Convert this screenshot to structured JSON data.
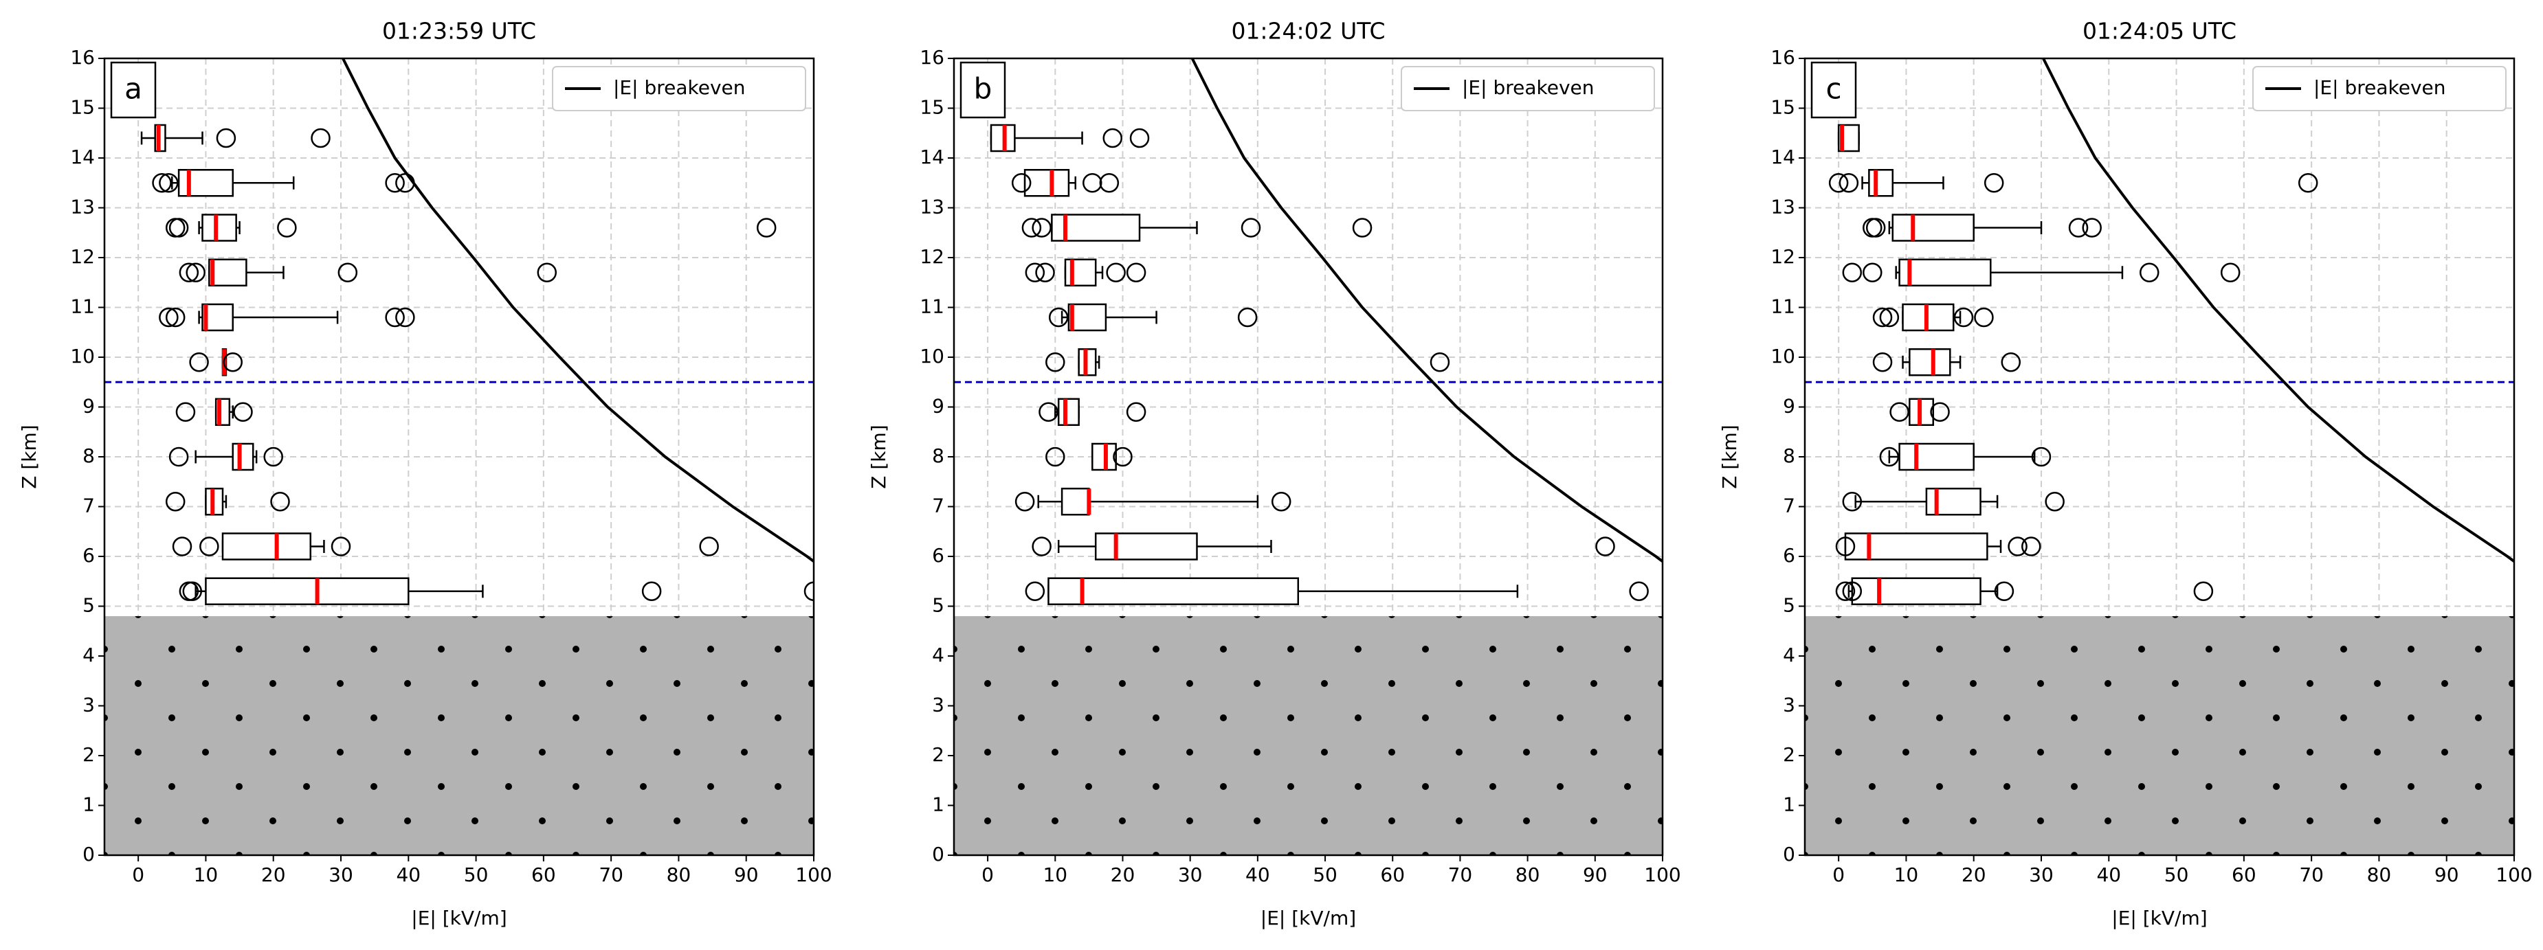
{
  "chart_data": [
    {
      "type": "box",
      "title": "01:23:59 UTC",
      "panel_label": "a",
      "xlabel": "|E| [kV/m]",
      "ylabel": "Z [km]",
      "xlim": [
        -5,
        100
      ],
      "ylim": [
        0,
        16
      ],
      "xticks": [
        0,
        10,
        20,
        30,
        40,
        50,
        60,
        70,
        80,
        90,
        100
      ],
      "yticks": [
        0,
        1,
        2,
        3,
        4,
        5,
        6,
        7,
        8,
        9,
        10,
        11,
        12,
        13,
        14,
        15,
        16
      ],
      "grid": true,
      "legend": "upper right",
      "box_color": "#000000",
      "median_color": "#ff0000",
      "reference_line": 9.5,
      "reference_color": "#0000cc",
      "ground_top": 4.8,
      "ground_color": "#b3b3b3",
      "boxes": {
        "positions": [
          5.3,
          6.2,
          7.1,
          8.0,
          8.9,
          9.9,
          10.8,
          11.7,
          12.6,
          13.5,
          14.4
        ],
        "whislo": [
          8.5,
          12.5,
          10,
          8.5,
          11.5,
          12.5,
          9,
          10.5,
          9,
          5,
          0.5
        ],
        "q1": [
          10,
          12.5,
          10,
          14,
          11.5,
          12.5,
          9.5,
          10.5,
          9.5,
          6,
          2.5
        ],
        "med": [
          26.5,
          20.5,
          11,
          15,
          12,
          12.7,
          10,
          11,
          11.5,
          7.5,
          3
        ],
        "q3": [
          40,
          25.5,
          12.5,
          17,
          13.5,
          13,
          14,
          16,
          14.5,
          14,
          4
        ],
        "whishi": [
          51,
          27.5,
          13,
          17.5,
          14,
          13,
          29.5,
          21.5,
          15,
          23,
          9.5
        ],
        "fliers": [
          [
            7.5,
            8,
            76,
            100
          ],
          [
            6.5,
            10.5,
            30,
            84.5
          ],
          [
            5.5,
            21
          ],
          [
            6,
            20
          ],
          [
            7,
            15.5
          ],
          [
            9,
            14
          ],
          [
            4.5,
            5.5,
            38,
            39.5
          ],
          [
            7.5,
            8.5,
            31,
            60.5
          ],
          [
            5.5,
            6,
            22,
            93
          ],
          [
            3.5,
            4.5,
            38,
            39.5
          ],
          [
            13,
            27
          ]
        ]
      },
      "series": [
        {
          "name": "|E| breakeven",
          "color": "#000000",
          "x": [
            30.3,
            34,
            38,
            43.5,
            49.6,
            55.5,
            62.4,
            69.5,
            78,
            88,
            99,
            100
          ],
          "y": [
            16,
            15,
            14,
            13,
            12,
            11,
            10,
            9,
            8,
            7,
            6,
            5.9
          ]
        }
      ]
    },
    {
      "type": "box",
      "title": "01:24:02 UTC",
      "panel_label": "b",
      "xlabel": "|E| [kV/m]",
      "ylabel": "Z [km]",
      "xlim": [
        -5,
        100
      ],
      "ylim": [
        0,
        16
      ],
      "xticks": [
        0,
        10,
        20,
        30,
        40,
        50,
        60,
        70,
        80,
        90,
        100
      ],
      "yticks": [
        0,
        1,
        2,
        3,
        4,
        5,
        6,
        7,
        8,
        9,
        10,
        11,
        12,
        13,
        14,
        15,
        16
      ],
      "grid": true,
      "legend": "upper right",
      "box_color": "#000000",
      "median_color": "#ff0000",
      "reference_line": 9.5,
      "reference_color": "#0000cc",
      "ground_top": 4.8,
      "ground_color": "#b3b3b3",
      "boxes": {
        "positions": [
          5.3,
          6.2,
          7.1,
          8.0,
          8.9,
          9.9,
          10.8,
          11.7,
          12.6,
          13.5,
          14.4
        ],
        "whislo": [
          9,
          10.5,
          7.5,
          15.5,
          10,
          13.5,
          11,
          11.5,
          9.5,
          5.5,
          0.5
        ],
        "q1": [
          9,
          16,
          11,
          15.5,
          10.5,
          13.5,
          12,
          11.5,
          9.5,
          5.5,
          0.5
        ],
        "med": [
          14,
          19,
          15,
          17.5,
          11.5,
          14.5,
          12.5,
          12.5,
          11.5,
          9.5,
          2.5
        ],
        "q3": [
          46,
          31,
          15,
          19,
          13.5,
          16,
          17.5,
          16,
          22.5,
          12,
          4
        ],
        "whishi": [
          78.5,
          42,
          40,
          19,
          13.5,
          16.5,
          25,
          17,
          31,
          13,
          14
        ],
        "fliers": [
          [
            7,
            96.5
          ],
          [
            8,
            91.5
          ],
          [
            5.5,
            43.5
          ],
          [
            10,
            20
          ],
          [
            9,
            22
          ],
          [
            10,
            67
          ],
          [
            10.5,
            38.5
          ],
          [
            7,
            8.5,
            19,
            22
          ],
          [
            6.5,
            8,
            39,
            55.5
          ],
          [
            5,
            15.5,
            18
          ],
          [
            18.5,
            22.5
          ]
        ]
      },
      "series": [
        {
          "name": "|E| breakeven",
          "color": "#000000",
          "x": [
            30.3,
            34,
            38,
            43.5,
            49.6,
            55.5,
            62.4,
            69.5,
            78,
            88,
            99,
            100
          ],
          "y": [
            16,
            15,
            14,
            13,
            12,
            11,
            10,
            9,
            8,
            7,
            6,
            5.9
          ]
        }
      ]
    },
    {
      "type": "box",
      "title": "01:24:05 UTC",
      "panel_label": "c",
      "xlabel": "|E| [kV/m]",
      "ylabel": "Z [km]",
      "xlim": [
        -5,
        100
      ],
      "ylim": [
        0,
        16
      ],
      "xticks": [
        0,
        10,
        20,
        30,
        40,
        50,
        60,
        70,
        80,
        90,
        100
      ],
      "yticks": [
        0,
        1,
        2,
        3,
        4,
        5,
        6,
        7,
        8,
        9,
        10,
        11,
        12,
        13,
        14,
        15,
        16
      ],
      "grid": true,
      "legend": "upper right",
      "box_color": "#000000",
      "median_color": "#ff0000",
      "reference_line": 9.5,
      "reference_color": "#0000cc",
      "ground_top": 4.8,
      "ground_color": "#b3b3b3",
      "boxes": {
        "positions": [
          5.3,
          6.2,
          7.1,
          8.0,
          8.9,
          9.9,
          10.8,
          11.7,
          12.6,
          13.5,
          14.4
        ],
        "whislo": [
          1.5,
          1,
          2.5,
          7.5,
          10.5,
          9.5,
          9.5,
          8.5,
          7.5,
          3.5,
          0
        ],
        "q1": [
          2,
          1,
          13,
          9,
          10.5,
          10.5,
          9.5,
          9,
          8,
          4.5,
          0
        ],
        "med": [
          6,
          4.5,
          14.5,
          11.5,
          12,
          14,
          13,
          10.5,
          11,
          5.5,
          0.5
        ],
        "q3": [
          21,
          22,
          21,
          20,
          14,
          16.5,
          17,
          22.5,
          20,
          8,
          3
        ],
        "whishi": [
          23.5,
          24,
          23.5,
          29,
          14,
          18,
          18,
          42,
          30,
          15.5,
          3
        ],
        "fliers": [
          [
            1,
            2,
            24.5,
            54
          ],
          [
            1,
            26.5,
            28.5
          ],
          [
            2,
            32
          ],
          [
            7.5,
            30
          ],
          [
            9,
            15
          ],
          [
            6.5,
            25.5
          ],
          [
            6.5,
            7.5,
            18.5,
            21.5
          ],
          [
            2,
            5,
            46,
            58
          ],
          [
            5,
            5.5,
            35.5,
            37.5
          ],
          [
            0,
            1.5,
            23,
            69.5
          ],
          []
        ]
      },
      "series": [
        {
          "name": "|E| breakeven",
          "color": "#000000",
          "x": [
            30.3,
            34,
            38,
            43.5,
            49.6,
            55.5,
            62.4,
            69.5,
            78,
            88,
            99,
            100
          ],
          "y": [
            16,
            15,
            14,
            13,
            12,
            11,
            10,
            9,
            8,
            7,
            6,
            5.9
          ]
        }
      ]
    }
  ]
}
